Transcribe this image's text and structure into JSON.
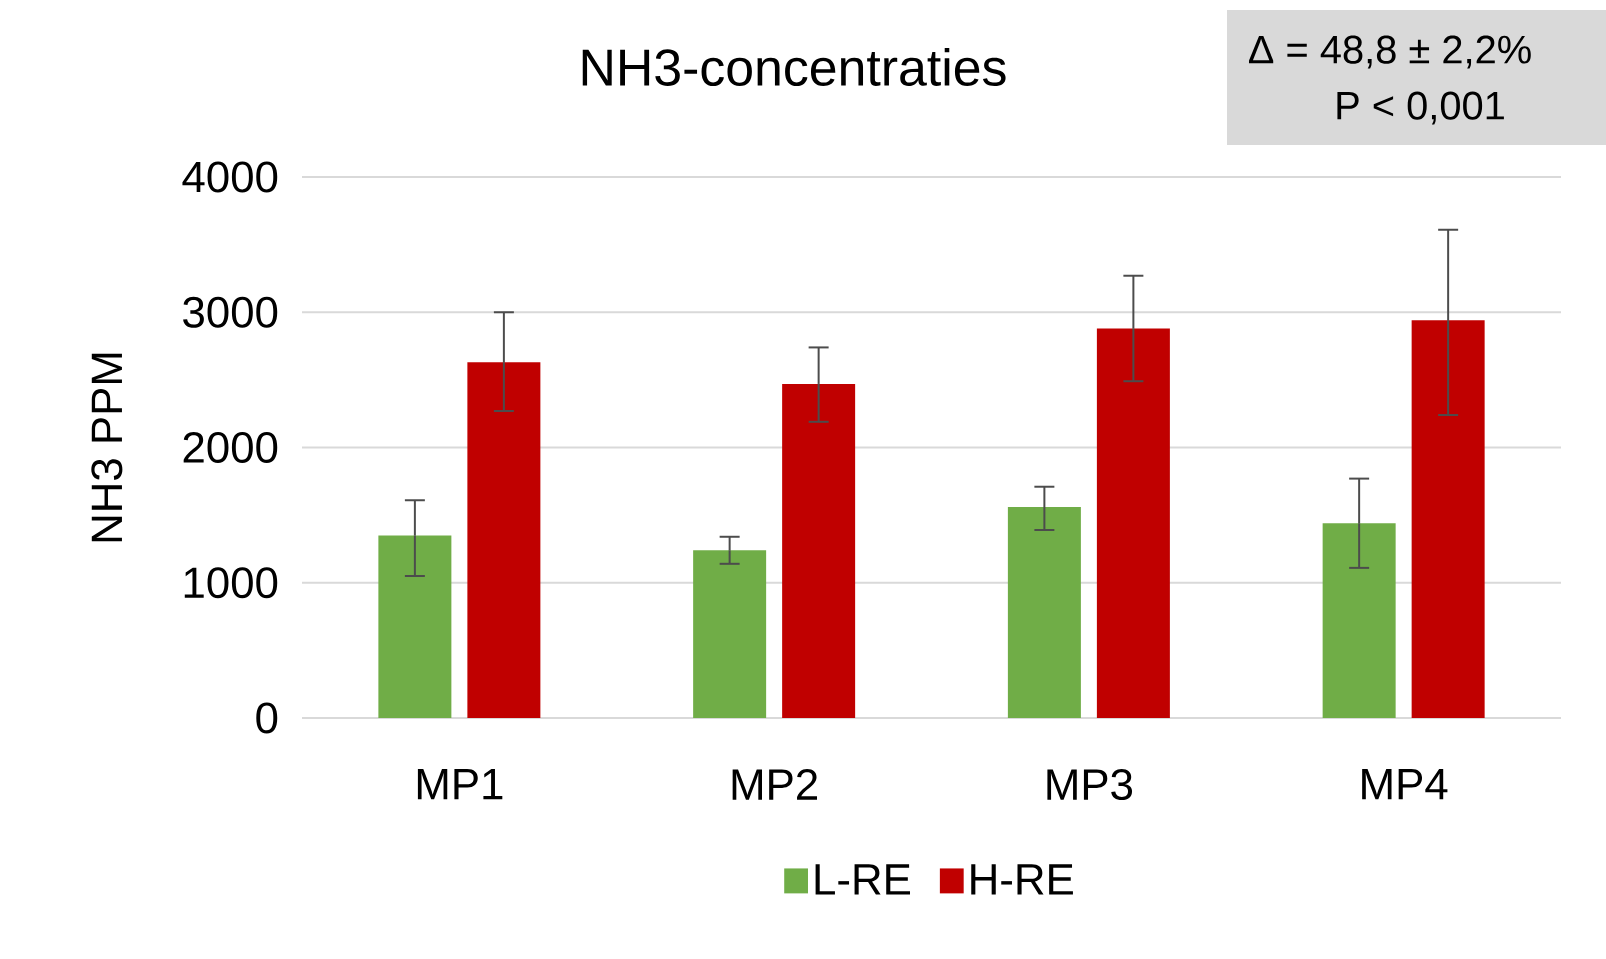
{
  "chart_data": {
    "type": "bar",
    "title": "NH3-concentraties",
    "ylabel": "NH3 PPM",
    "annotations": [
      "Δ = 48,8 ± 2,2%",
      "P < 0,001"
    ],
    "categories": [
      "MP1",
      "MP2",
      "MP3",
      "MP4"
    ],
    "series": [
      {
        "name": "L-RE",
        "color": "#70ad47",
        "values": [
          1350,
          1240,
          1560,
          1440
        ],
        "errors": [
          [
            1050,
            1610
          ],
          [
            1140,
            1340
          ],
          [
            1390,
            1710
          ],
          [
            1110,
            1770
          ]
        ]
      },
      {
        "name": "H-RE",
        "color": "#c00000",
        "values": [
          2630,
          2470,
          2880,
          2940
        ],
        "errors": [
          [
            2270,
            3000
          ],
          [
            2190,
            2740
          ],
          [
            2490,
            3270
          ],
          [
            2240,
            3610
          ]
        ]
      }
    ],
    "ylim": [
      0,
      4000
    ],
    "yticks": [
      0,
      1000,
      2000,
      3000,
      4000
    ],
    "grid": "y",
    "legend": "bottom"
  }
}
